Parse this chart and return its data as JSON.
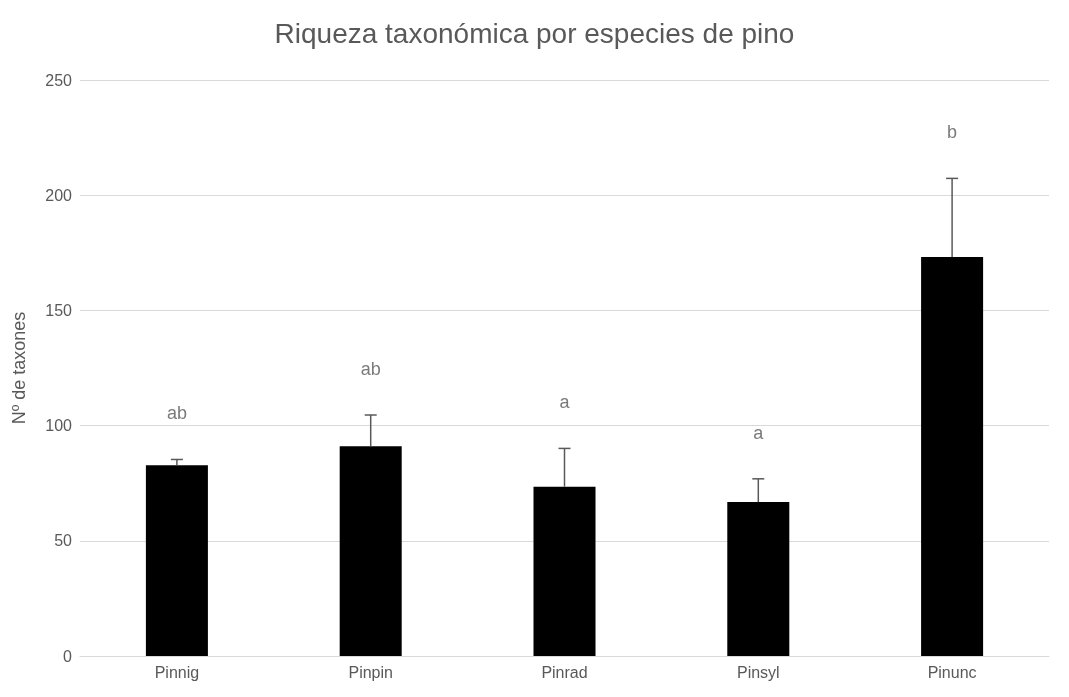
{
  "chart_data": {
    "type": "bar",
    "title": "Riqueza taxonómica por especies de pino",
    "ylabel": "Nº de taxones",
    "categories": [
      "Pinnig",
      "Pinpin",
      "Pinrad",
      "Pinsyl",
      "Pinunc"
    ],
    "values": [
      82.8,
      91,
      73.5,
      66.8,
      173.2
    ],
    "color": "#000000",
    "errors": [
      [
        82.8,
        85.3
      ],
      [
        91,
        104.6
      ],
      [
        73.5,
        90.1
      ],
      [
        66.8,
        76.9
      ],
      [
        173.2,
        207.3
      ]
    ],
    "annotations": [
      "ab",
      "ab",
      "a",
      "a",
      "b"
    ],
    "ylim": [
      0,
      250
    ],
    "yticks": [
      0,
      50,
      100,
      150,
      200,
      250
    ],
    "grid": "y"
  }
}
